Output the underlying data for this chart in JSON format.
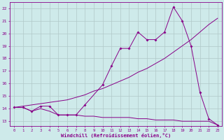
{
  "xlabel": "Windchill (Refroidissement éolien,°C)",
  "background_color": "#ceeaea",
  "grid_color": "#b0c8c8",
  "line_color": "#880088",
  "x_ticks": [
    0,
    1,
    2,
    3,
    4,
    5,
    6,
    7,
    8,
    9,
    10,
    11,
    12,
    13,
    14,
    15,
    16,
    17,
    18,
    19,
    20,
    21,
    22,
    23
  ],
  "y_ticks": [
    13,
    14,
    15,
    16,
    17,
    18,
    19,
    20,
    21,
    22
  ],
  "ylim": [
    12.6,
    22.5
  ],
  "xlim": [
    -0.5,
    23.5
  ],
  "line1_x": [
    0,
    1,
    2,
    3,
    4,
    5,
    6,
    7,
    8,
    10,
    11,
    12,
    13,
    14,
    15,
    16,
    17,
    18,
    19,
    20,
    21,
    22,
    23
  ],
  "line1_y": [
    14.1,
    14.1,
    13.8,
    14.2,
    14.2,
    13.5,
    13.5,
    13.5,
    14.3,
    15.9,
    17.4,
    18.8,
    18.8,
    20.1,
    19.5,
    19.5,
    20.1,
    22.1,
    21.0,
    19.0,
    15.3,
    13.2,
    12.7
  ],
  "line2_x": [
    0,
    1,
    2,
    3,
    4,
    5,
    6,
    7,
    8,
    9,
    10,
    11,
    12,
    13,
    14,
    15,
    16,
    17,
    18,
    19,
    20,
    21,
    22,
    23
  ],
  "line2_y": [
    14.1,
    14.2,
    14.3,
    14.4,
    14.5,
    14.6,
    14.7,
    14.9,
    15.1,
    15.4,
    15.6,
    15.9,
    16.2,
    16.5,
    16.9,
    17.2,
    17.6,
    18.0,
    18.5,
    19.0,
    19.5,
    20.1,
    20.7,
    21.2
  ],
  "line3_x": [
    0,
    1,
    2,
    3,
    4,
    5,
    6,
    7,
    8,
    9,
    10,
    11,
    12,
    13,
    14,
    15,
    16,
    17,
    18,
    19,
    20,
    21,
    22,
    23
  ],
  "line3_y": [
    14.1,
    14.1,
    13.8,
    14.0,
    13.8,
    13.5,
    13.5,
    13.5,
    13.4,
    13.4,
    13.3,
    13.3,
    13.3,
    13.3,
    13.2,
    13.2,
    13.1,
    13.1,
    13.1,
    13.0,
    13.0,
    13.0,
    13.0,
    12.7
  ]
}
